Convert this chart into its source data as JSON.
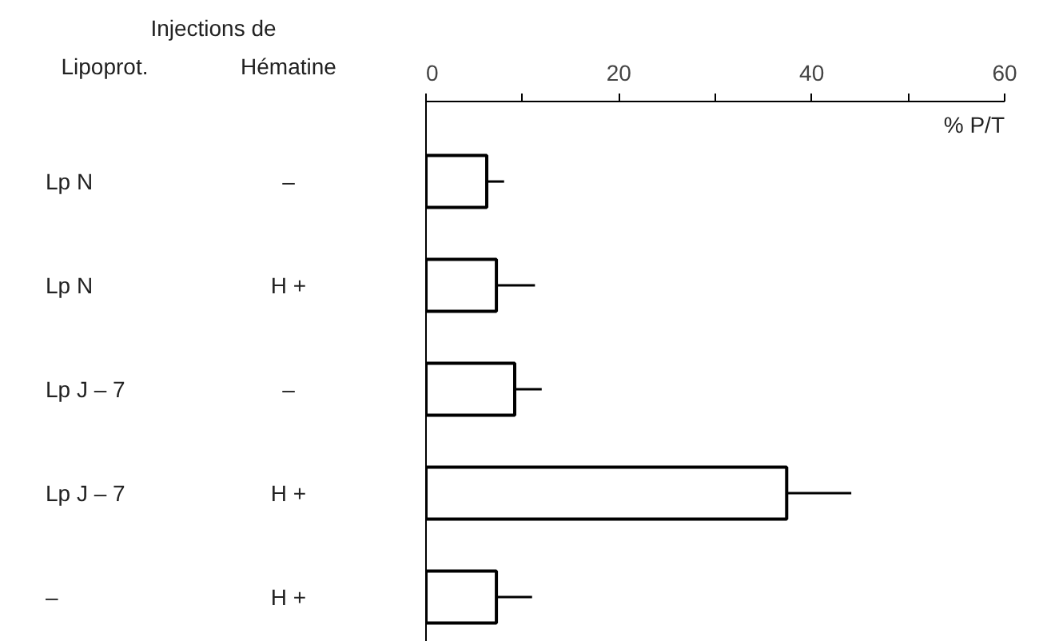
{
  "chart_data": {
    "type": "bar",
    "orientation": "horizontal",
    "title": "Injections de",
    "ylabel": "Hématine",
    "annotations": [
      "Lipoprot."
    ],
    "xlabel": "% P/T",
    "categories": [
      "–",
      "H +",
      "–",
      "H +",
      "H +"
    ],
    "y2_categories": [
      "Lp N",
      "Lp N",
      "Lp J – 7",
      "Lp J – 7",
      "–"
    ],
    "values": [
      6.3,
      7.3,
      9.2,
      37.4,
      7.3
    ],
    "errors": [
      [
        6.3,
        8.1
      ],
      [
        7.3,
        11.3
      ],
      [
        9.2,
        12.0
      ],
      [
        37.4,
        44.1
      ],
      [
        7.3,
        11.0
      ]
    ],
    "color": "#ffffff",
    "xlim": [
      0,
      60
    ],
    "xticks": [
      0,
      {
        "value": 10,
        "label": null
      },
      20,
      {
        "value": 30,
        "label": null
      },
      40,
      {
        "value": 50,
        "label": null
      },
      60
    ],
    "grid": false
  }
}
